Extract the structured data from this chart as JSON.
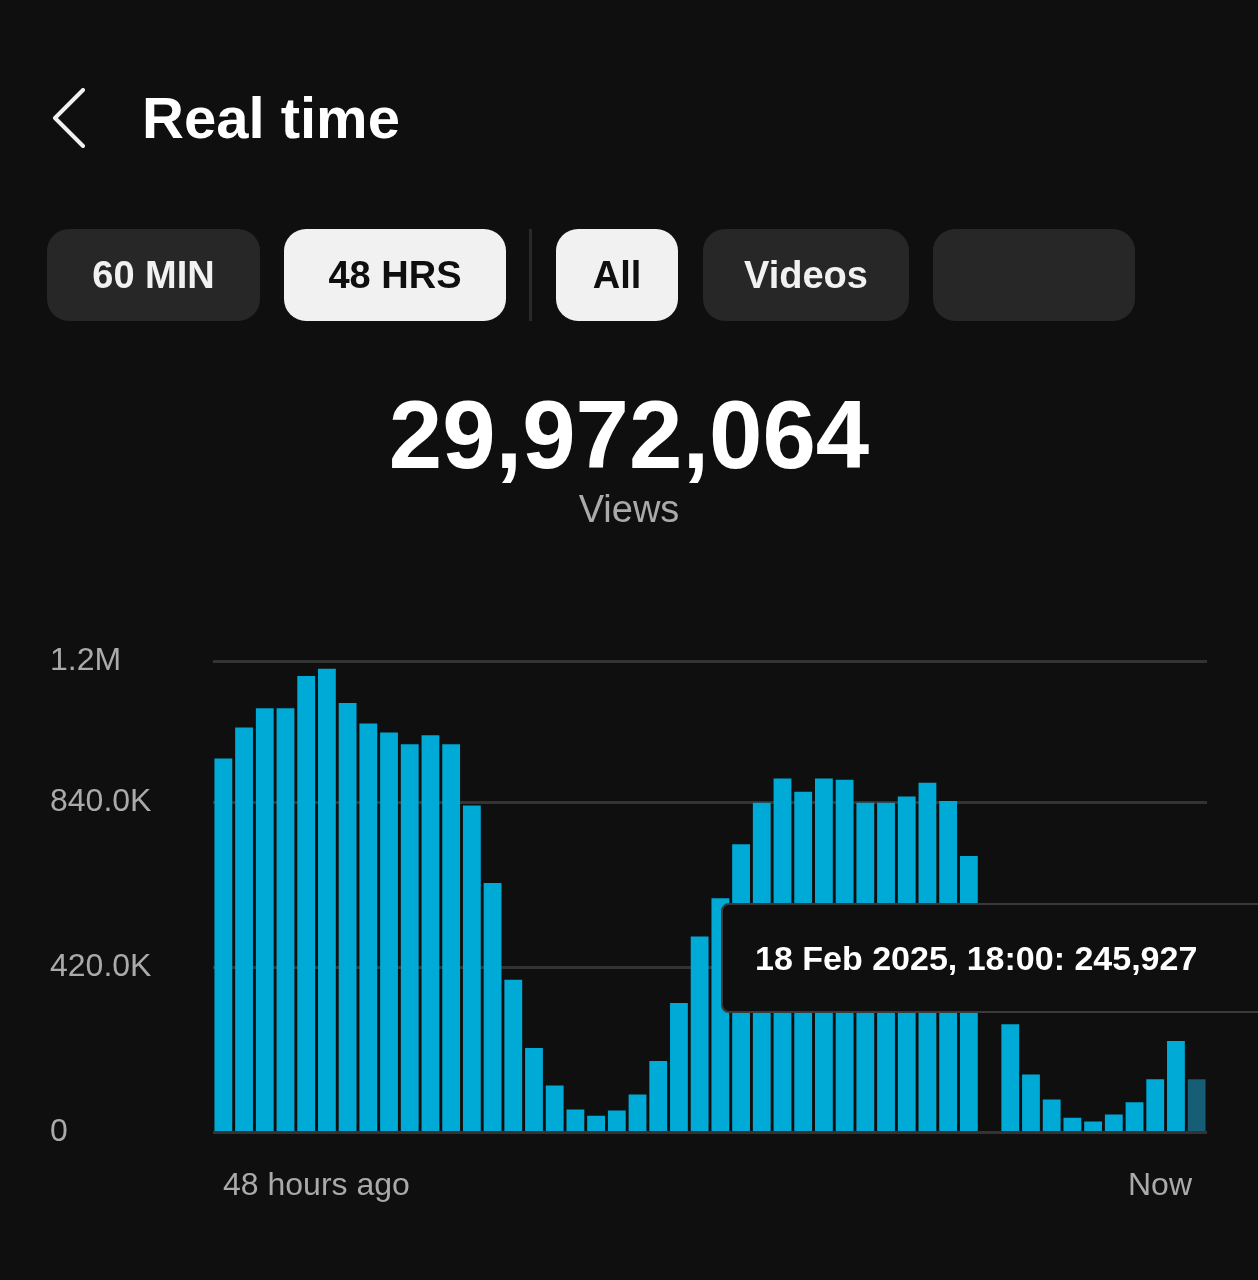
{
  "chart_data": {
    "type": "bar",
    "title": "Real time",
    "annotations": [
      "60 MIN",
      "48 HRS",
      "All",
      "Videos",
      "29,972,064",
      "Views",
      "18 Feb 2025, 18:00: 245,927",
      "48 hours ago",
      "Now"
    ],
    "categories": [
      null,
      null,
      null,
      null,
      null,
      null,
      null,
      null,
      null,
      null,
      null,
      null,
      null,
      null,
      null,
      null,
      null,
      null,
      null,
      null,
      null,
      null,
      null,
      null,
      null,
      null,
      null,
      null,
      null,
      null,
      null,
      null,
      null,
      null,
      null,
      null,
      null,
      null,
      null,
      null,
      null,
      null,
      null,
      null,
      null,
      null,
      null,
      null
    ],
    "values": [
      952000,
      1031000,
      1080000,
      1080000,
      1162000,
      1180000,
      1093000,
      1041000,
      1018000,
      988000,
      1011000,
      988000,
      832000,
      635000,
      389000,
      215000,
      120000,
      59000,
      43000,
      56000,
      97000,
      182000,
      330000,
      499000,
      596000,
      734000,
      839000,
      901000,
      867000,
      901000,
      898000,
      839000,
      839000,
      855000,
      890000,
      844000,
      704000,
      null,
      276000,
      148000,
      84000,
      38000,
      28000,
      46000,
      77000,
      136000,
      233000,
      136000
    ],
    "colors": [
      "#00aad6",
      "#00aad6",
      "#00aad6",
      "#00aad6",
      "#00aad6",
      "#00aad6",
      "#00aad6",
      "#00aad6",
      "#00aad6",
      "#00aad6",
      "#00aad6",
      "#00aad6",
      "#00aad6",
      "#00aad6",
      "#00aad6",
      "#00aad6",
      "#00aad6",
      "#00aad6",
      "#00aad6",
      "#00aad6",
      "#00aad6",
      "#00aad6",
      "#00aad6",
      "#00aad6",
      "#00aad6",
      "#00aad6",
      "#00aad6",
      "#00aad6",
      "#00aad6",
      "#00aad6",
      "#00aad6",
      "#00aad6",
      "#00aad6",
      "#00aad6",
      "#00aad6",
      "#00aad6",
      "#00aad6",
      "#00aad6",
      "#00aad6",
      "#00aad6",
      "#00aad6",
      "#00aad6",
      "#00aad6",
      "#00aad6",
      "#00aad6",
      "#00aad6",
      "#00aad6",
      "#155e75"
    ],
    "ylim": [
      0,
      1200000
    ],
    "yticks": [
      {
        "value": 0,
        "label": "0"
      },
      {
        "value": 420000,
        "label": "420.0K"
      },
      {
        "value": 840000,
        "label": "840.0K"
      },
      {
        "value": 1200000,
        "label": "1.2M"
      }
    ],
    "grid": "y"
  }
}
